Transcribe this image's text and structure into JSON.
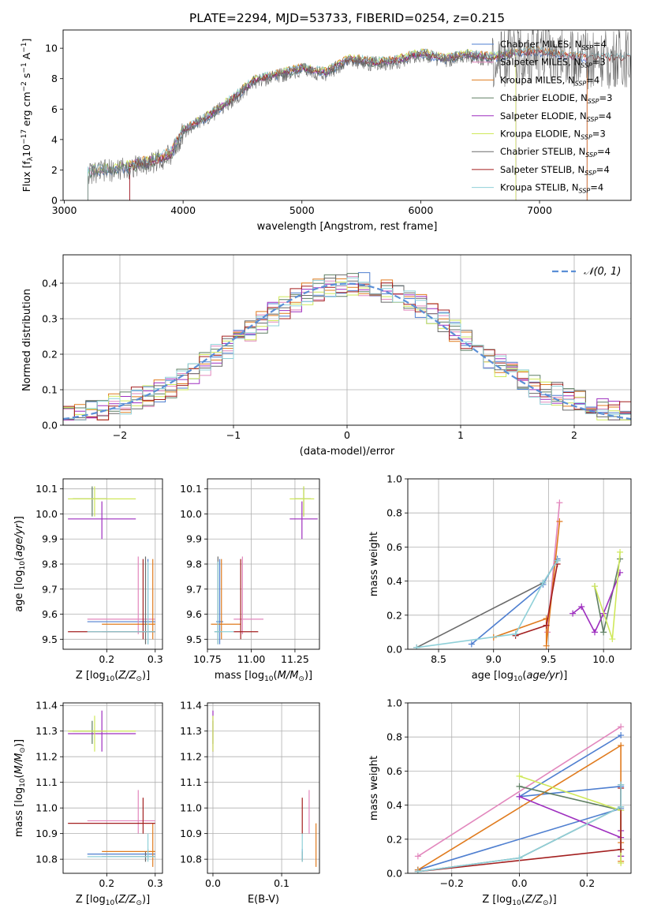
{
  "title": "PLATE=2294, MJD=53733, FIBERID=0254, z=0.215",
  "colors": {
    "Chabrier MILES": "#4f7fd0",
    "Salpeter MILES": "#e287bd",
    "Kroupa MILES": "#e07b1e",
    "Chabrier ELODIE": "#5f7f63",
    "Salpeter ELODIE": "#9e2fbf",
    "Kroupa ELODIE": "#cfe85a",
    "Chabrier STELIB": "#6a6a6a",
    "Salpeter STELIB": "#a31f1f",
    "Kroupa STELIB": "#8fd0d8",
    "gaussian": "#5b8fd6"
  },
  "chart_data": [
    {
      "id": "spectrum",
      "type": "line",
      "xlabel": "wavelength [Angstrom, rest frame]",
      "ylabel": "Flux [f_λ 10^-17 erg cm^-2 s^-1 A^-1]",
      "xlim": [
        2990,
        7770
      ],
      "ylim": [
        0,
        11.2
      ],
      "xticks": [
        "3000",
        "4000",
        "5000",
        "6000",
        "7000"
      ],
      "yticks": [
        "0",
        "2",
        "4",
        "6",
        "8",
        "10"
      ],
      "grid": false,
      "legend_position": "upper right",
      "legend": [
        {
          "model": "Chabrier MILES",
          "nssp": "4"
        },
        {
          "model": "Salpeter MILES",
          "nssp": "3"
        },
        {
          "model": "Kroupa MILES",
          "nssp": "4"
        },
        {
          "model": "Chabrier ELODIE",
          "nssp": "3"
        },
        {
          "model": "Salpeter ELODIE",
          "nssp": "4"
        },
        {
          "model": "Kroupa ELODIE",
          "nssp": "3"
        },
        {
          "model": "Chabrier STELIB",
          "nssp": "4"
        },
        {
          "model": "Salpeter STELIB",
          "nssp": "4"
        },
        {
          "model": "Kroupa STELIB",
          "nssp": "4"
        }
      ],
      "continuum": {
        "x": [
          3200,
          3500,
          3700,
          3900,
          4000,
          4200,
          4400,
          4600,
          4800,
          5000,
          5200,
          5400,
          5600,
          5800,
          6000,
          6200,
          6400,
          6600,
          6800,
          7000,
          7200,
          7400
        ],
        "y": [
          1.9,
          2.2,
          2.5,
          3.1,
          4.6,
          5.5,
          6.6,
          7.9,
          8.3,
          8.7,
          8.4,
          9.3,
          9.1,
          9.2,
          9.7,
          9.3,
          9.6,
          9.4,
          9.7,
          9.8,
          9.5,
          9.4
        ]
      },
      "models_start_wavelength": [
        3200,
        3200,
        3550,
        3200,
        3550,
        3200,
        3200,
        3550,
        3200
      ],
      "models_end_wavelength": [
        7400,
        7400,
        7400,
        6800,
        6800,
        6800,
        7770,
        7770,
        7770
      ]
    },
    {
      "id": "residuals",
      "type": "histogram",
      "xlabel": "(data-model)/error",
      "ylabel": "Normed distribution",
      "xlim": [
        -2.5,
        2.5
      ],
      "ylim": [
        0,
        0.48
      ],
      "xticks": [
        "−2",
        "−1",
        "0",
        "1",
        "2"
      ],
      "yticks": [
        "0.0",
        "0.1",
        "0.2",
        "0.3",
        "0.4"
      ],
      "grid": true,
      "bin_width": 0.1,
      "legend_position": "upper right",
      "gaussian_label": "𝒩(0, 1)"
    },
    {
      "id": "age_vs_Z",
      "type": "scatter",
      "xlabel": "Z [log10(Z/Z⊙)]",
      "ylabel": "age  [log10(age/yr)]",
      "xlim": [
        0.11,
        0.315
      ],
      "ylim": [
        9.46,
        10.14
      ],
      "xticks": [
        "0.2",
        "0.3"
      ],
      "yticks": [
        "9.5",
        "9.6",
        "9.7",
        "9.8",
        "9.9",
        "10.0",
        "10.1"
      ],
      "grid": true
    },
    {
      "id": "age_vs_mass",
      "type": "scatter",
      "xlabel": "mass [log10(M/M⊙)]",
      "ylabel": "",
      "xlim": [
        10.75,
        11.39
      ],
      "ylim": [
        9.46,
        10.14
      ],
      "xticks": [
        "10.75",
        "11.00",
        "11.25"
      ],
      "yticks": [
        "9.5",
        "9.6",
        "9.7",
        "9.8",
        "9.9",
        "10.0",
        "10.1"
      ],
      "grid": true
    },
    {
      "id": "mass_weight_vs_age",
      "type": "line",
      "xlabel": "age  [log10(age/yr)]",
      "ylabel": "mass weight",
      "xlim": [
        8.22,
        10.25
      ],
      "ylim": [
        0,
        1.0
      ],
      "xticks": [
        "8.5",
        "9.0",
        "9.5",
        "10.0"
      ],
      "yticks": [
        "0.0",
        "0.2",
        "0.4",
        "0.6",
        "0.8",
        "1.0"
      ],
      "grid": true
    },
    {
      "id": "mass_vs_Z",
      "type": "scatter",
      "xlabel": "Z [log10(Z/Z⊙)]",
      "ylabel": "mass [log10(M/M⊙)]",
      "xlim": [
        0.11,
        0.315
      ],
      "ylim": [
        10.745,
        11.41
      ],
      "xticks": [
        "0.2",
        "0.3"
      ],
      "yticks": [
        "10.8",
        "10.9",
        "11.0",
        "11.1",
        "11.2",
        "11.3",
        "11.4"
      ],
      "grid": true
    },
    {
      "id": "mass_vs_ebv",
      "type": "scatter",
      "xlabel": "E(B-V)",
      "ylabel": "",
      "xlim": [
        -0.008,
        0.155
      ],
      "ylim": [
        10.745,
        11.41
      ],
      "xticks": [
        "0.0",
        "0.1"
      ],
      "yticks": [
        "10.8",
        "10.9",
        "11.0",
        "11.1",
        "11.2",
        "11.3",
        "11.4"
      ],
      "grid": true
    },
    {
      "id": "mass_weight_vs_Z",
      "type": "line",
      "xlabel": "Z [log10(Z/Z⊙)]",
      "ylabel": "mass weight",
      "xlim": [
        -0.33,
        0.33
      ],
      "ylim": [
        0,
        1.0
      ],
      "xticks": [
        "−0.2",
        "0.0",
        "0.2"
      ],
      "yticks": [
        "0.0",
        "0.2",
        "0.4",
        "0.6",
        "0.8",
        "1.0"
      ],
      "grid": true
    }
  ],
  "fits": [
    {
      "model": "Chabrier MILES",
      "Z": 0.285,
      "Zerr": [
        0.16,
        0.3
      ],
      "age": 9.57,
      "ageerr": [
        9.48,
        9.82
      ],
      "mass": 10.82,
      "masserr": [
        10.8,
        10.84
      ],
      "ebv": 0.13,
      "sp": [
        [
          8.8,
          0.03
        ],
        [
          9.45,
          0.38
        ],
        [
          9.58,
          0.53
        ]
      ],
      "sz": [
        [
          -0.3,
          0.02
        ],
        [
          0.3,
          0.38
        ],
        [
          0.3,
          0.51
        ],
        [
          0.0,
          0.45
        ],
        [
          0.3,
          0.81
        ]
      ]
    },
    {
      "model": "Salpeter MILES",
      "Z": 0.265,
      "Zerr": [
        0.16,
        0.3
      ],
      "age": 9.58,
      "ageerr": [
        9.52,
        9.83
      ],
      "mass": 10.95,
      "masserr": [
        10.9,
        11.07
      ],
      "ebv": 0.14,
      "sp": [
        [
          9.49,
          0.1
        ],
        [
          9.6,
          0.86
        ]
      ],
      "sz": [
        [
          -0.3,
          0.1
        ],
        [
          0.3,
          0.86
        ]
      ]
    },
    {
      "model": "Kroupa MILES",
      "Z": 0.295,
      "Zerr": [
        0.19,
        0.3
      ],
      "age": 9.56,
      "ageerr": [
        9.5,
        9.82
      ],
      "mass": 10.83,
      "masserr": [
        10.77,
        10.94
      ],
      "ebv": 0.15,
      "sp": [
        [
          9.0,
          0.07
        ],
        [
          9.48,
          0.18
        ],
        [
          9.48,
          0.02
        ],
        [
          9.6,
          0.75
        ]
      ],
      "sz": [
        [
          -0.3,
          0.02
        ],
        [
          0.3,
          0.75
        ],
        [
          0.3,
          0.18
        ],
        [
          0.3,
          0.07
        ]
      ]
    },
    {
      "model": "Chabrier ELODIE",
      "Z": 0.17,
      "Zerr": [
        0.13,
        0.2
      ],
      "age": 10.06,
      "ageerr": [
        9.99,
        10.11
      ],
      "mass": 11.3,
      "masserr": [
        11.25,
        11.34
      ],
      "ebv": 0.0,
      "sp": [
        [
          9.92,
          0.37
        ],
        [
          10.0,
          0.1
        ],
        [
          10.15,
          0.53
        ]
      ],
      "sz": [
        [
          0.0,
          0.51
        ],
        [
          0.3,
          0.37
        ],
        [
          0.3,
          0.1
        ]
      ]
    },
    {
      "model": "Salpeter ELODIE",
      "Z": 0.19,
      "Zerr": [
        0.12,
        0.26
      ],
      "age": 9.98,
      "ageerr": [
        9.9,
        10.05
      ],
      "mass": 11.29,
      "masserr": [
        11.22,
        11.38
      ],
      "ebv": 0.0,
      "sp": [
        [
          9.72,
          0.21
        ],
        [
          9.8,
          0.25
        ],
        [
          9.92,
          0.1
        ],
        [
          10.0,
          0.21
        ],
        [
          10.15,
          0.45
        ]
      ],
      "sz": [
        [
          0.0,
          0.45
        ],
        [
          0.3,
          0.21
        ],
        [
          0.3,
          0.25
        ],
        [
          0.3,
          0.1
        ]
      ]
    },
    {
      "model": "Kroupa ELODIE",
      "Z": 0.175,
      "Zerr": [
        0.12,
        0.26
      ],
      "age": 10.06,
      "ageerr": [
        9.99,
        10.11
      ],
      "mass": 11.3,
      "masserr": [
        11.22,
        11.36
      ],
      "ebv": 0.0,
      "sp": [
        [
          9.92,
          0.37
        ],
        [
          10.08,
          0.06
        ],
        [
          10.15,
          0.57
        ]
      ],
      "sz": [
        [
          0.0,
          0.57
        ],
        [
          0.3,
          0.37
        ],
        [
          0.3,
          0.06
        ]
      ]
    },
    {
      "model": "Chabrier STELIB",
      "Z": 0.28,
      "Zerr": [
        0.19,
        0.3
      ],
      "age": 9.53,
      "ageerr": [
        9.48,
        9.83
      ],
      "mass": 10.81,
      "masserr": [
        10.79,
        10.83
      ],
      "ebv": 0.13,
      "sp": [
        [
          8.3,
          0.01
        ],
        [
          9.45,
          0.39
        ],
        [
          9.58,
          0.52
        ]
      ],
      "sz": [
        [
          -0.3,
          0.01
        ],
        [
          0.0,
          0.09
        ],
        [
          0.3,
          0.39
        ],
        [
          0.3,
          0.52
        ]
      ]
    },
    {
      "model": "Salpeter STELIB",
      "Z": 0.275,
      "Zerr": [
        0.12,
        0.3
      ],
      "age": 9.53,
      "ageerr": [
        9.5,
        9.82
      ],
      "mass": 10.94,
      "masserr": [
        10.9,
        11.04
      ],
      "ebv": 0.13,
      "sp": [
        [
          9.2,
          0.08
        ],
        [
          9.48,
          0.14
        ],
        [
          9.58,
          0.5
        ]
      ],
      "sz": [
        [
          -0.3,
          0.01
        ],
        [
          0.3,
          0.14
        ],
        [
          0.3,
          0.5
        ]
      ]
    },
    {
      "model": "Kroupa STELIB",
      "Z": 0.285,
      "Zerr": [
        0.16,
        0.3
      ],
      "age": 9.53,
      "ageerr": [
        9.48,
        9.81
      ],
      "mass": 10.81,
      "masserr": [
        10.79,
        10.9
      ],
      "ebv": 0.13,
      "sp": [
        [
          8.3,
          0.01
        ],
        [
          9.2,
          0.09
        ],
        [
          9.45,
          0.39
        ],
        [
          9.58,
          0.52
        ]
      ],
      "sz": [
        [
          -0.3,
          0.01
        ],
        [
          0.0,
          0.09
        ],
        [
          0.3,
          0.39
        ],
        [
          0.3,
          0.52
        ]
      ]
    }
  ]
}
